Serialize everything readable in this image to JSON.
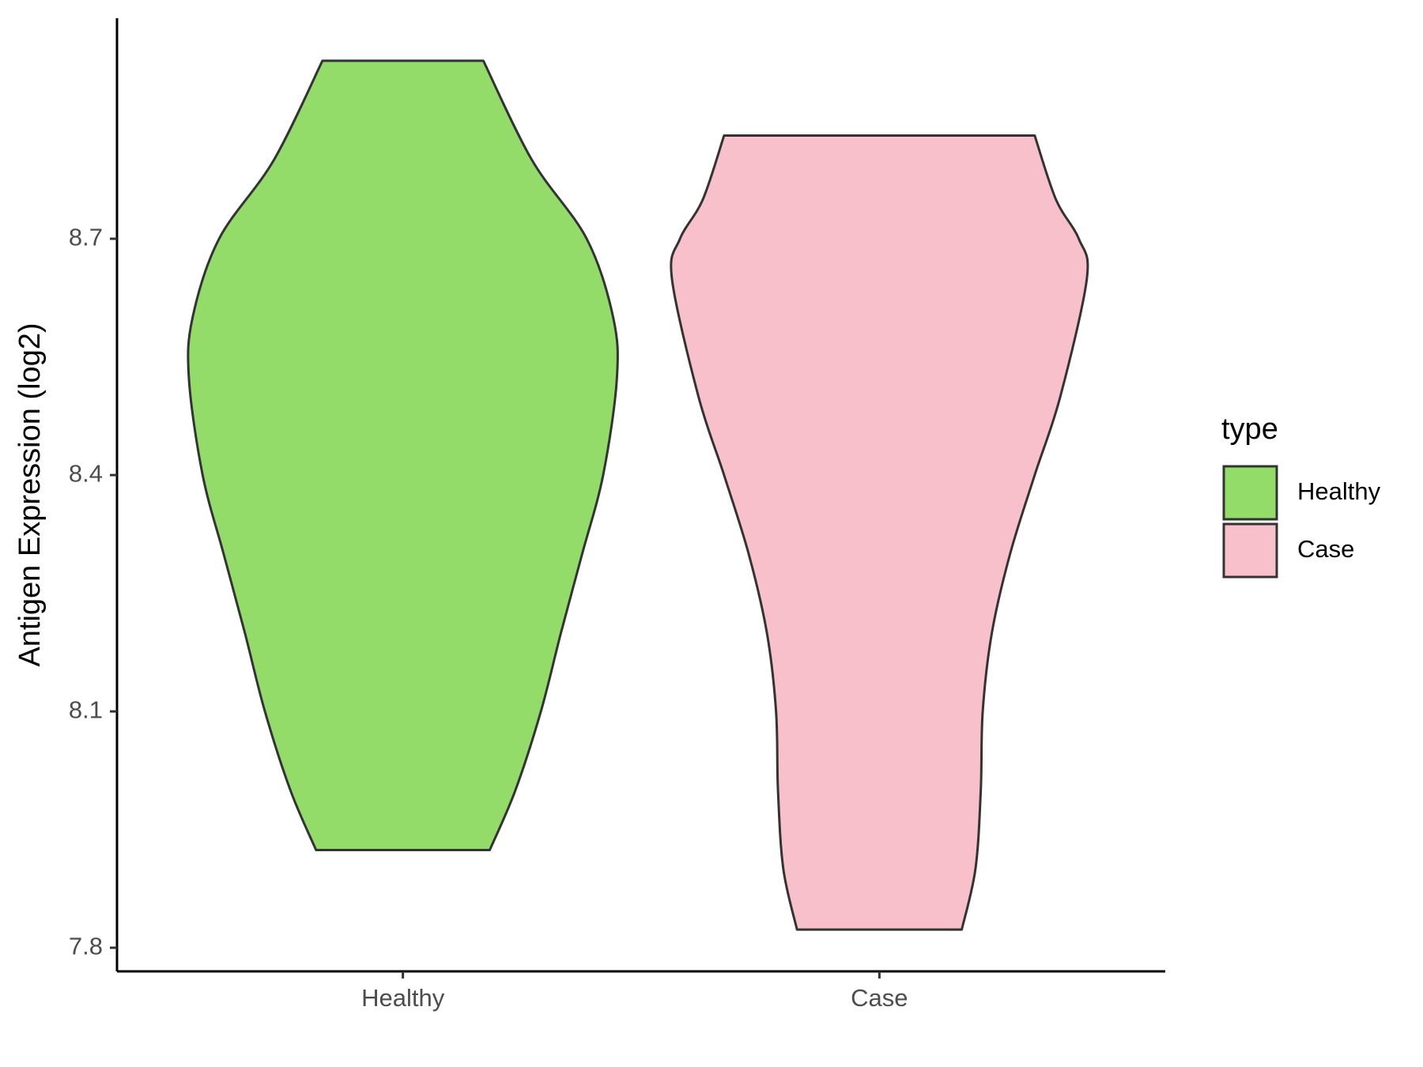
{
  "chart_data": {
    "type": "violin",
    "y_label": "Antigen Expression (log2)",
    "categories": [
      "Healthy",
      "Case"
    ],
    "legend_title": "type",
    "legend_position": "right",
    "ylim": [
      7.77,
      8.98
    ],
    "yticks": [
      7.8,
      8.1,
      8.4,
      8.7
    ],
    "grid": false,
    "series": [
      {
        "name": "Healthy",
        "color": "#93dc6a",
        "values": [
          8.926,
          8.8,
          8.7,
          8.6,
          8.522,
          8.4,
          8.3,
          8.2,
          8.1,
          8.0,
          7.924
        ],
        "density": [
          0.376,
          0.603,
          0.859,
          0.983,
          1,
          0.936,
          0.838,
          0.739,
          0.645,
          0.526,
          0.406
        ]
      },
      {
        "name": "Case",
        "color": "#f7c0cb",
        "values": [
          8.831,
          8.75,
          8.7,
          8.65,
          8.5,
          8.4,
          8.3,
          8.2,
          8.1,
          8.0,
          7.9,
          7.823
        ],
        "density": [
          0.726,
          0.825,
          0.932,
          0.97,
          0.846,
          0.726,
          0.611,
          0.526,
          0.483,
          0.474,
          0.449,
          0.385
        ]
      }
    ]
  }
}
